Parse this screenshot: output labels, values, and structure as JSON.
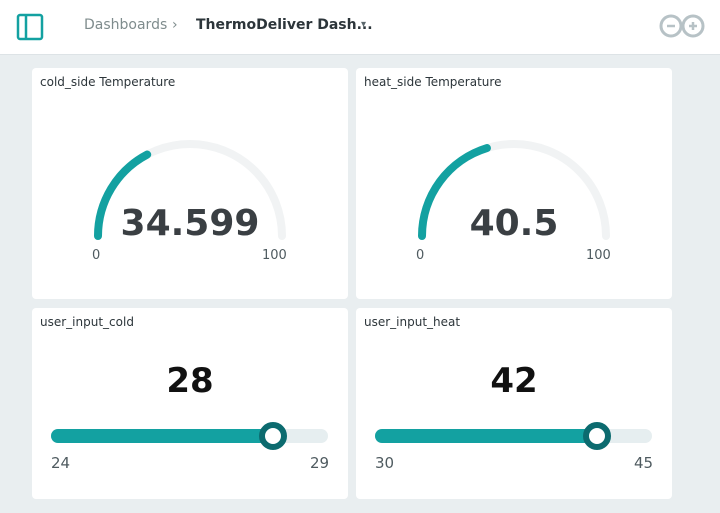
{
  "header": {
    "breadcrumb_root": "Dashboards",
    "separator": "›",
    "dashboard_name": "ThermoDeliver Dash...",
    "caret": "▾",
    "brand_icon": "arduino-logo-icon",
    "sidebar_icon": "sidebar-toggle-icon"
  },
  "colors": {
    "accent": "#13a1a1",
    "thumb": "#0c6b6f",
    "track": "#e6eef0",
    "gauge_track": "#f1f3f4",
    "background": "#e9eef0"
  },
  "widgets": [
    {
      "type": "gauge",
      "title": "cold_side Temperature",
      "value": "34.599",
      "min": "0",
      "max": "100",
      "fraction": 0.34599
    },
    {
      "type": "gauge",
      "title": "heat_side Temperature",
      "value": "40.5",
      "min": "0",
      "max": "100",
      "fraction": 0.405
    },
    {
      "type": "slider",
      "title": "user_input_cold",
      "value": "28",
      "min": "24",
      "max": "29",
      "fraction": 0.8
    },
    {
      "type": "slider",
      "title": "user_input_heat",
      "value": "42",
      "min": "30",
      "max": "45",
      "fraction": 0.8
    }
  ]
}
